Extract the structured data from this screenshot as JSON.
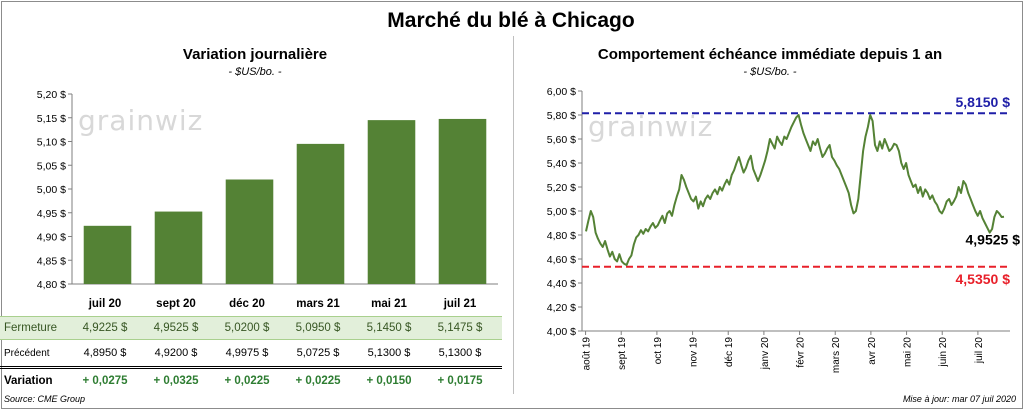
{
  "title": "Marché du blé à Chicago",
  "left": {
    "title": "Variation journalière",
    "subtitle": "- $US/bo. -"
  },
  "right": {
    "title": "Comportement échéance immédiate depuis 1 an",
    "subtitle": "- $US/bo. -"
  },
  "watermark": "grainwiz",
  "table": {
    "headers": [
      "juil 20",
      "sept 20",
      "déc 20",
      "mars 21",
      "mai 21",
      "juil 21"
    ],
    "rows": [
      {
        "label": "Fermeture",
        "values": [
          "4,9225  $",
          "4,9525  $",
          "5,0200  $",
          "5,0950  $",
          "5,1450  $",
          "5,1475  $"
        ]
      },
      {
        "label": "Précédent",
        "values": [
          "4,8950  $",
          "4,9200  $",
          "4,9975  $",
          "5,0725  $",
          "5,1300  $",
          "5,1300  $"
        ]
      },
      {
        "label": "Variation",
        "values": [
          "+ 0,0275",
          "+ 0,0325",
          "+ 0,0225",
          "+ 0,0225",
          "+ 0,0150",
          "+ 0,0175"
        ]
      }
    ]
  },
  "footer": {
    "source": "Source: CME Group",
    "updated": "Mise à jour: mar 07 juil 2020"
  },
  "colors": {
    "bar": "#548235",
    "line": "#548235",
    "high_line": "#1f1fa8",
    "low_line": "#e8202a"
  },
  "chart_data": [
    {
      "type": "bar",
      "title": "Variation journalière",
      "subtitle": "- $US/bo. -",
      "categories": [
        "juil 20",
        "sept 20",
        "déc 20",
        "mars 21",
        "mai 21",
        "juil 21"
      ],
      "values": [
        4.9225,
        4.9525,
        5.02,
        5.095,
        5.145,
        5.1475
      ],
      "ylim": [
        4.8,
        5.2
      ],
      "yticks": [
        "4,80 $",
        "4,85 $",
        "4,90 $",
        "4,95 $",
        "5,00 $",
        "5,05 $",
        "5,10 $",
        "5,15 $",
        "5,20 $"
      ],
      "grid": false
    },
    {
      "type": "line",
      "title": "Comportement échéance immédiate depuis 1 an",
      "subtitle": "- $US/bo. -",
      "xticks": [
        "août 19",
        "sept 19",
        "oct 19",
        "nov 19",
        "déc 19",
        "janv 20",
        "févr 20",
        "mars 20",
        "avr 20",
        "mai 20",
        "juin 20",
        "juil 20"
      ],
      "ylim": [
        4.0,
        6.0
      ],
      "yticks": [
        "4,00 $",
        "4,20 $",
        "4,40 $",
        "4,60 $",
        "4,80 $",
        "5,00 $",
        "5,20 $",
        "5,40 $",
        "5,60 $",
        "5,80 $",
        "6,00 $"
      ],
      "grid": false,
      "values": [
        4.83,
        4.92,
        5.0,
        4.95,
        4.82,
        4.77,
        4.73,
        4.7,
        4.75,
        4.68,
        4.62,
        4.66,
        4.6,
        4.58,
        4.64,
        4.58,
        4.56,
        4.55,
        4.6,
        4.63,
        4.72,
        4.78,
        4.8,
        4.84,
        4.81,
        4.85,
        4.83,
        4.87,
        4.9,
        4.86,
        4.88,
        4.92,
        4.96,
        4.9,
        4.98,
        5.0,
        4.96,
        5.05,
        5.12,
        5.18,
        5.3,
        5.26,
        5.2,
        5.15,
        5.1,
        5.08,
        5.12,
        5.02,
        5.08,
        5.04,
        5.1,
        5.13,
        5.1,
        5.15,
        5.18,
        5.14,
        5.2,
        5.17,
        5.22,
        5.26,
        5.22,
        5.3,
        5.34,
        5.4,
        5.45,
        5.38,
        5.32,
        5.36,
        5.42,
        5.46,
        5.35,
        5.3,
        5.25,
        5.3,
        5.36,
        5.42,
        5.5,
        5.6,
        5.56,
        5.52,
        5.62,
        5.58,
        5.55,
        5.62,
        5.6,
        5.65,
        5.7,
        5.74,
        5.78,
        5.8,
        5.72,
        5.65,
        5.6,
        5.55,
        5.5,
        5.58,
        5.55,
        5.6,
        5.52,
        5.45,
        5.48,
        5.52,
        5.55,
        5.45,
        5.42,
        5.38,
        5.35,
        5.3,
        5.25,
        5.2,
        5.15,
        5.05,
        4.98,
        5.0,
        5.1,
        5.3,
        5.5,
        5.62,
        5.7,
        5.8,
        5.75,
        5.55,
        5.5,
        5.58,
        5.52,
        5.6,
        5.55,
        5.5,
        5.52,
        5.56,
        5.55,
        5.5,
        5.4,
        5.35,
        5.4,
        5.3,
        5.25,
        5.2,
        5.22,
        5.15,
        5.2,
        5.12,
        5.18,
        5.15,
        5.1,
        5.13,
        5.08,
        5.05,
        5.0,
        4.98,
        5.02,
        5.08,
        5.1,
        5.05,
        5.08,
        5.12,
        5.2,
        5.15,
        5.25,
        5.22,
        5.15,
        5.1,
        5.05,
        5.0,
        4.96,
        5.0,
        4.94,
        4.9,
        4.86,
        4.82,
        4.85,
        4.95,
        5.0,
        4.98,
        4.95,
        4.9525
      ],
      "reference_lines": [
        {
          "label": "5,8150 $",
          "value": 5.815,
          "color": "#1f1fa8"
        },
        {
          "label": "4,5350 $",
          "value": 4.535,
          "color": "#e8202a"
        }
      ],
      "last_label": "4,9525 $"
    }
  ]
}
